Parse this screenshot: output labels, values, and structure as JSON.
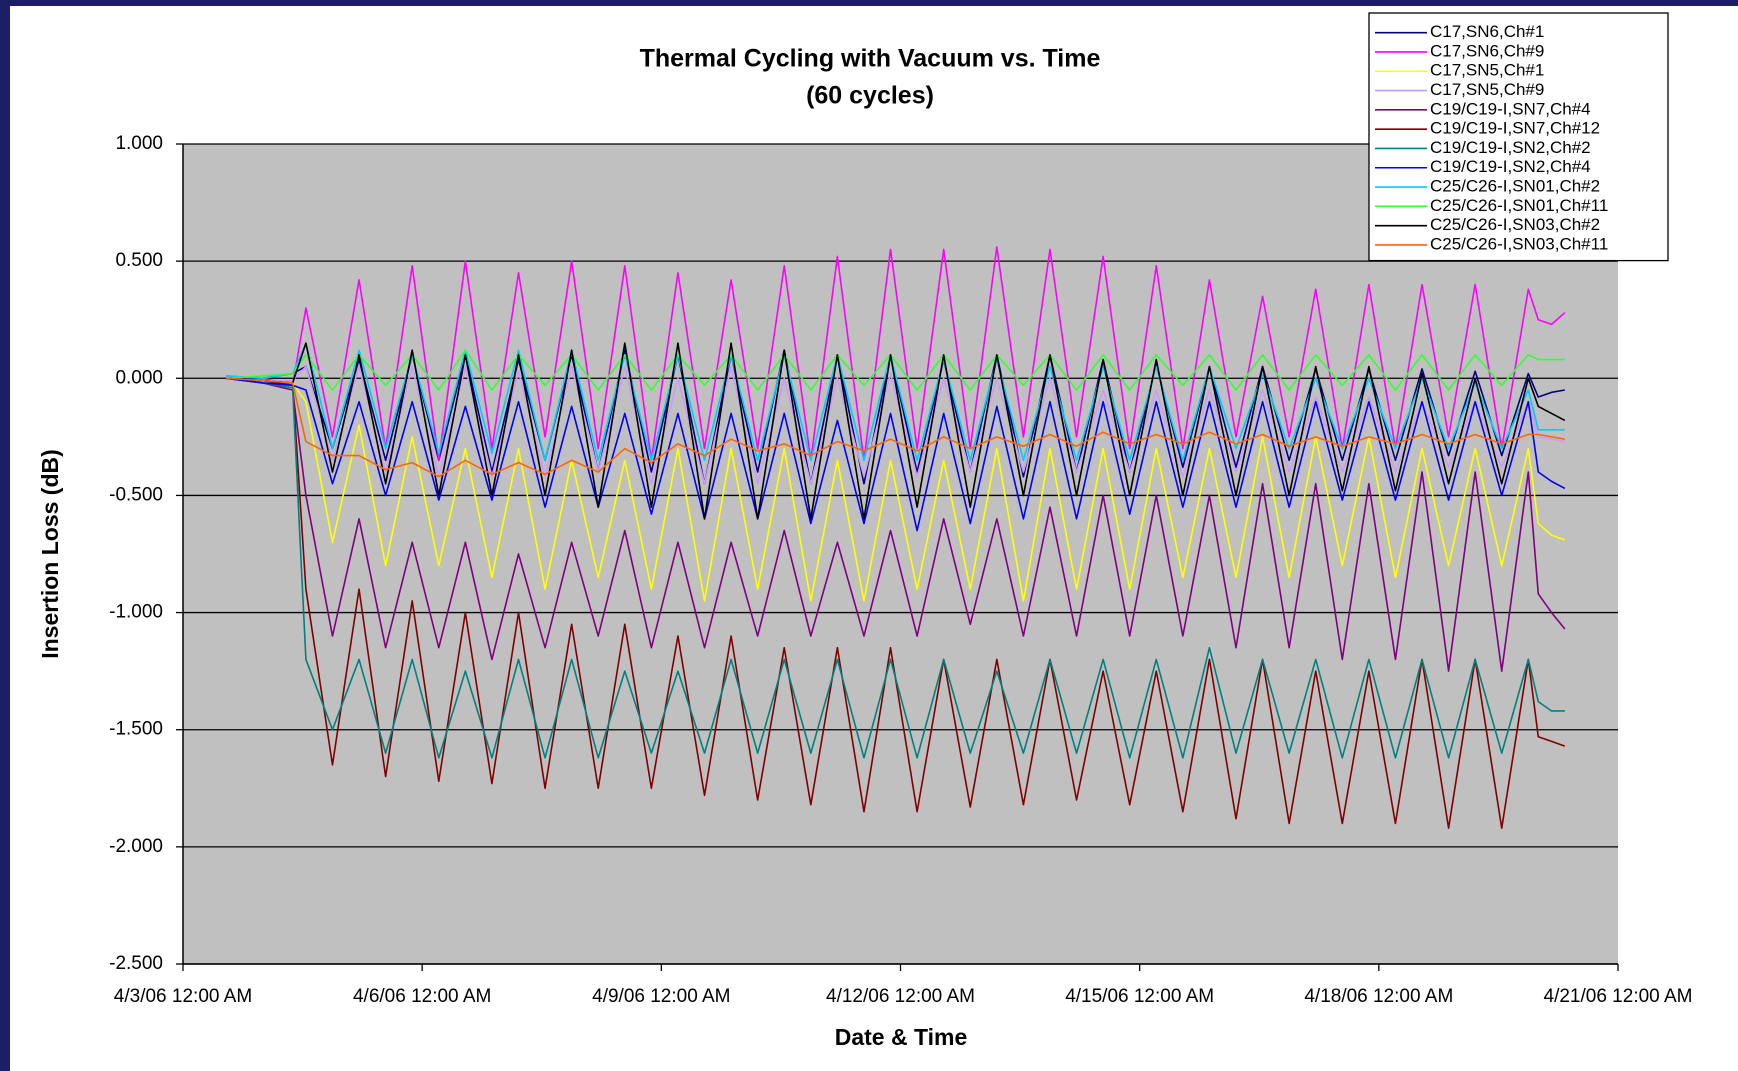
{
  "chart_data": {
    "type": "line",
    "title": "Thermal Cycling with Vacuum vs. Time",
    "subtitle": "(60 cycles)",
    "xlabel": "Date & Time",
    "ylabel": "Insertion Loss (dB)",
    "xlim": [
      "4/3/06 12:00 AM",
      "4/21/06 12:00 AM"
    ],
    "xticks": [
      "4/3/06 12:00 AM",
      "4/6/06 12:00 AM",
      "4/9/06 12:00 AM",
      "4/12/06 12:00 AM",
      "4/15/06 12:00 AM",
      "4/18/06 12:00 AM",
      "4/21/06 12:00 AM"
    ],
    "ylim": [
      -2.5,
      1
    ],
    "yticks": [
      {
        "value": 1,
        "label": "1.000"
      },
      {
        "value": 0.5,
        "label": "0.500"
      },
      {
        "value": 0,
        "label": "0.000"
      },
      {
        "value": -0.5,
        "label": "-0.500"
      },
      {
        "value": -1,
        "label": "-1.000"
      },
      {
        "value": -1.5,
        "label": "-1.500"
      },
      {
        "value": -2,
        "label": "-2.000"
      },
      {
        "value": -2.5,
        "label": "-2.500"
      }
    ],
    "grid": true,
    "legend": "top-right",
    "x": [
      "4/3/06 1:00 PM",
      "4/4/06 12:00 AM",
      "4/4/06 9:00 AM",
      "4/4/06 1:00 PM",
      "4/4/06 9:00 PM",
      "4/5/06 5:00 AM",
      "4/5/06 1:00 PM",
      "4/5/06 9:00 PM",
      "4/6/06 5:00 AM",
      "4/6/06 1:00 PM",
      "4/6/06 9:00 PM",
      "4/7/06 5:00 AM",
      "4/7/06 1:00 PM",
      "4/7/06 9:00 PM",
      "4/8/06 5:00 AM",
      "4/8/06 1:00 PM",
      "4/8/06 9:00 PM",
      "4/9/06 5:00 AM",
      "4/9/06 1:00 PM",
      "4/9/06 9:00 PM",
      "4/10/06 5:00 AM",
      "4/10/06 1:00 PM",
      "4/10/06 9:00 PM",
      "4/11/06 5:00 AM",
      "4/11/06 1:00 PM",
      "4/11/06 9:00 PM",
      "4/12/06 5:00 AM",
      "4/12/06 1:00 PM",
      "4/12/06 9:00 PM",
      "4/13/06 5:00 AM",
      "4/13/06 1:00 PM",
      "4/13/06 9:00 PM",
      "4/14/06 5:00 AM",
      "4/14/06 1:00 PM",
      "4/14/06 9:00 PM",
      "4/15/06 5:00 AM",
      "4/15/06 1:00 PM",
      "4/15/06 9:00 PM",
      "4/16/06 5:00 AM",
      "4/16/06 1:00 PM",
      "4/16/06 9:00 PM",
      "4/17/06 5:00 AM",
      "4/17/06 1:00 PM",
      "4/17/06 9:00 PM",
      "4/18/06 5:00 AM",
      "4/18/06 1:00 PM",
      "4/18/06 9:00 PM",
      "4/19/06 5:00 AM",
      "4/19/06 1:00 PM",
      "4/19/06 9:00 PM",
      "4/20/06 12:00 AM",
      "4/20/06 4:00 AM",
      "4/20/06 8:00 AM"
    ],
    "series": [
      {
        "name": "C17,SN6,Ch#1",
        "color": "#000080",
        "values": [
          0,
          0,
          0.02,
          0.05,
          -0.3,
          0.08,
          -0.35,
          0.1,
          -0.35,
          0.1,
          -0.4,
          0.08,
          -0.35,
          0.1,
          -0.4,
          0.12,
          -0.4,
          0.1,
          -0.45,
          0.1,
          -0.4,
          0.12,
          -0.45,
          0.1,
          -0.45,
          0.1,
          -0.4,
          0.08,
          -0.4,
          0.1,
          -0.42,
          0.1,
          -0.4,
          0.08,
          -0.4,
          0.06,
          -0.38,
          0.05,
          -0.38,
          0.05,
          -0.35,
          0.04,
          -0.35,
          0.04,
          -0.35,
          0.04,
          -0.33,
          0.03,
          -0.33,
          0.02,
          -0.08,
          -0.06,
          -0.05
        ]
      },
      {
        "name": "C17,SN6,Ch#9",
        "color": "#ff00ff",
        "values": [
          0.01,
          0,
          -0.03,
          0.3,
          -0.25,
          0.42,
          -0.3,
          0.48,
          -0.35,
          0.5,
          -0.3,
          0.45,
          -0.25,
          0.5,
          -0.3,
          0.48,
          -0.35,
          0.45,
          -0.3,
          0.42,
          -0.3,
          0.48,
          -0.35,
          0.52,
          -0.35,
          0.55,
          -0.3,
          0.55,
          -0.3,
          0.56,
          -0.25,
          0.55,
          -0.25,
          0.52,
          -0.3,
          0.48,
          -0.3,
          0.42,
          -0.25,
          0.35,
          -0.25,
          0.38,
          -0.3,
          0.4,
          -0.3,
          0.4,
          -0.25,
          0.4,
          -0.3,
          0.38,
          0.25,
          0.23,
          0.28
        ]
      },
      {
        "name": "C17,SN5,Ch#1",
        "color": "#ffff00",
        "values": [
          0,
          -0.01,
          -0.02,
          -0.1,
          -0.7,
          -0.2,
          -0.8,
          -0.25,
          -0.8,
          -0.3,
          -0.85,
          -0.3,
          -0.9,
          -0.35,
          -0.85,
          -0.35,
          -0.9,
          -0.3,
          -0.95,
          -0.3,
          -0.9,
          -0.3,
          -0.95,
          -0.35,
          -0.95,
          -0.35,
          -0.9,
          -0.35,
          -0.9,
          -0.3,
          -0.95,
          -0.3,
          -0.9,
          -0.3,
          -0.9,
          -0.3,
          -0.85,
          -0.3,
          -0.85,
          -0.25,
          -0.85,
          -0.25,
          -0.8,
          -0.25,
          -0.85,
          -0.3,
          -0.8,
          -0.3,
          -0.8,
          -0.3,
          -0.62,
          -0.67,
          -0.69
        ]
      },
      {
        "name": "C17,SN5,Ch#9",
        "color": "#cc99ff",
        "values": [
          0,
          -0.01,
          -0.01,
          0.05,
          -0.35,
          0.05,
          -0.4,
          0.05,
          -0.42,
          0.05,
          -0.42,
          0.03,
          -0.42,
          0.05,
          -0.4,
          0.05,
          -0.45,
          0,
          -0.45,
          0.05,
          -0.45,
          0,
          -0.45,
          0,
          -0.42,
          0.02,
          -0.42,
          0,
          -0.4,
          0,
          -0.4,
          0,
          -0.4,
          -0.05,
          -0.4,
          -0.05,
          -0.42,
          -0.05,
          -0.4,
          -0.05,
          -0.4,
          -0.08,
          -0.4,
          -0.08,
          -0.4,
          -0.1,
          -0.38,
          -0.1,
          -0.38,
          -0.1,
          -0.25,
          -0.26,
          -0.27
        ]
      },
      {
        "name": "C19/C19-I,SN7,Ch#4",
        "color": "#800080",
        "values": [
          0,
          -0.02,
          -0.05,
          -0.5,
          -1.1,
          -0.6,
          -1.15,
          -0.7,
          -1.15,
          -0.7,
          -1.2,
          -0.75,
          -1.15,
          -0.7,
          -1.1,
          -0.65,
          -1.15,
          -0.7,
          -1.15,
          -0.7,
          -1.1,
          -0.65,
          -1.1,
          -0.7,
          -1.1,
          -0.65,
          -1.1,
          -0.6,
          -1.05,
          -0.6,
          -1.1,
          -0.55,
          -1.1,
          -0.5,
          -1.1,
          -0.5,
          -1.1,
          -0.5,
          -1.15,
          -0.45,
          -1.15,
          -0.45,
          -1.2,
          -0.45,
          -1.2,
          -0.4,
          -1.25,
          -0.4,
          -1.25,
          -0.4,
          -0.92,
          -1,
          -1.07
        ]
      },
      {
        "name": "C19/C19-I,SN7,Ch#12",
        "color": "#800000",
        "values": [
          0,
          -0.01,
          -0.03,
          -0.9,
          -1.65,
          -0.9,
          -1.7,
          -0.95,
          -1.72,
          -1,
          -1.73,
          -1,
          -1.75,
          -1.05,
          -1.75,
          -1.05,
          -1.75,
          -1.1,
          -1.78,
          -1.1,
          -1.8,
          -1.15,
          -1.82,
          -1.15,
          -1.85,
          -1.15,
          -1.85,
          -1.2,
          -1.83,
          -1.2,
          -1.82,
          -1.2,
          -1.8,
          -1.25,
          -1.82,
          -1.25,
          -1.85,
          -1.2,
          -1.88,
          -1.2,
          -1.9,
          -1.25,
          -1.9,
          -1.25,
          -1.9,
          -1.2,
          -1.92,
          -1.2,
          -1.92,
          -1.2,
          -1.53,
          -1.55,
          -1.57
        ]
      },
      {
        "name": "C19/C19-I,SN2,Ch#2",
        "color": "#008080",
        "values": [
          0,
          -0.02,
          -0.04,
          -1.2,
          -1.5,
          -1.2,
          -1.6,
          -1.2,
          -1.62,
          -1.25,
          -1.62,
          -1.2,
          -1.62,
          -1.2,
          -1.62,
          -1.25,
          -1.6,
          -1.25,
          -1.6,
          -1.2,
          -1.6,
          -1.2,
          -1.6,
          -1.2,
          -1.62,
          -1.2,
          -1.62,
          -1.2,
          -1.6,
          -1.25,
          -1.6,
          -1.2,
          -1.6,
          -1.2,
          -1.62,
          -1.2,
          -1.62,
          -1.15,
          -1.6,
          -1.2,
          -1.6,
          -1.2,
          -1.62,
          -1.2,
          -1.62,
          -1.2,
          -1.62,
          -1.2,
          -1.6,
          -1.2,
          -1.38,
          -1.42,
          -1.42
        ]
      },
      {
        "name": "C19/C19-I,SN2,Ch#4",
        "color": "#0000ff",
        "values": [
          0,
          -0.02,
          -0.03,
          -0.05,
          -0.45,
          -0.1,
          -0.5,
          -0.1,
          -0.52,
          -0.12,
          -0.52,
          -0.1,
          -0.55,
          -0.12,
          -0.55,
          -0.15,
          -0.58,
          -0.15,
          -0.6,
          -0.15,
          -0.6,
          -0.15,
          -0.62,
          -0.18,
          -0.62,
          -0.15,
          -0.65,
          -0.15,
          -0.62,
          -0.12,
          -0.6,
          -0.1,
          -0.6,
          -0.1,
          -0.58,
          -0.1,
          -0.55,
          -0.1,
          -0.55,
          -0.1,
          -0.55,
          -0.1,
          -0.52,
          -0.1,
          -0.52,
          -0.1,
          -0.52,
          -0.1,
          -0.5,
          -0.1,
          -0.4,
          -0.44,
          -0.47
        ]
      },
      {
        "name": "C25/C26-I,SN01,Ch#2",
        "color": "#00ccff",
        "values": [
          0.01,
          0,
          0.02,
          0.15,
          -0.3,
          0.12,
          -0.3,
          0.1,
          -0.32,
          0.12,
          -0.32,
          0.12,
          -0.35,
          0.12,
          -0.35,
          0.1,
          -0.35,
          0.1,
          -0.35,
          0.1,
          -0.35,
          0.1,
          -0.35,
          0.1,
          -0.35,
          0.1,
          -0.35,
          0.08,
          -0.35,
          0.08,
          -0.35,
          0.05,
          -0.35,
          0.05,
          -0.35,
          0.05,
          -0.35,
          0.05,
          -0.3,
          0.02,
          -0.3,
          0,
          -0.3,
          0,
          -0.3,
          0,
          -0.3,
          -0.02,
          -0.3,
          -0.05,
          -0.22,
          -0.22,
          -0.22
        ]
      },
      {
        "name": "C25/C26-I,SN01,Ch#11",
        "color": "#33ff33",
        "values": [
          0,
          0.01,
          0.02,
          0.1,
          -0.05,
          0.1,
          -0.03,
          0.1,
          -0.05,
          0.12,
          -0.05,
          0.1,
          -0.03,
          0.1,
          -0.05,
          0.1,
          -0.05,
          0.1,
          -0.03,
          0.1,
          -0.05,
          0.1,
          -0.05,
          0.1,
          -0.03,
          0.1,
          -0.05,
          0.1,
          -0.05,
          0.1,
          -0.03,
          0.1,
          -0.05,
          0.1,
          -0.05,
          0.1,
          -0.03,
          0.1,
          -0.05,
          0.1,
          -0.05,
          0.1,
          -0.03,
          0.1,
          -0.05,
          0.1,
          -0.05,
          0.1,
          -0.03,
          0.1,
          0.08,
          0.08,
          0.08
        ]
      },
      {
        "name": "C25/C26-I,SN03,Ch#2",
        "color": "#000000",
        "values": [
          0,
          -0.01,
          -0.02,
          0.15,
          -0.4,
          0.1,
          -0.45,
          0.12,
          -0.5,
          0.1,
          -0.5,
          0.1,
          -0.5,
          0.12,
          -0.55,
          0.15,
          -0.55,
          0.15,
          -0.6,
          0.15,
          -0.6,
          0.12,
          -0.6,
          0.1,
          -0.6,
          0.1,
          -0.55,
          0.1,
          -0.55,
          0.1,
          -0.5,
          0.1,
          -0.5,
          0.08,
          -0.5,
          0.08,
          -0.5,
          0.05,
          -0.5,
          0.05,
          -0.5,
          0.05,
          -0.48,
          0.05,
          -0.48,
          0.02,
          -0.45,
          0,
          -0.45,
          0,
          -0.12,
          -0.15,
          -0.18
        ]
      },
      {
        "name": "C25/C26-I,SN03,Ch#11",
        "color": "#ff6600",
        "values": [
          0,
          -0.01,
          -0.02,
          -0.27,
          -0.33,
          -0.33,
          -0.39,
          -0.36,
          -0.42,
          -0.35,
          -0.41,
          -0.36,
          -0.41,
          -0.35,
          -0.4,
          -0.3,
          -0.36,
          -0.28,
          -0.33,
          -0.26,
          -0.31,
          -0.28,
          -0.33,
          -0.27,
          -0.31,
          -0.26,
          -0.31,
          -0.25,
          -0.3,
          -0.25,
          -0.29,
          -0.24,
          -0.29,
          -0.23,
          -0.28,
          -0.24,
          -0.28,
          -0.23,
          -0.28,
          -0.24,
          -0.29,
          -0.25,
          -0.29,
          -0.25,
          -0.28,
          -0.24,
          -0.28,
          -0.24,
          -0.28,
          -0.24,
          -0.24,
          -0.25,
          -0.26
        ]
      }
    ]
  }
}
